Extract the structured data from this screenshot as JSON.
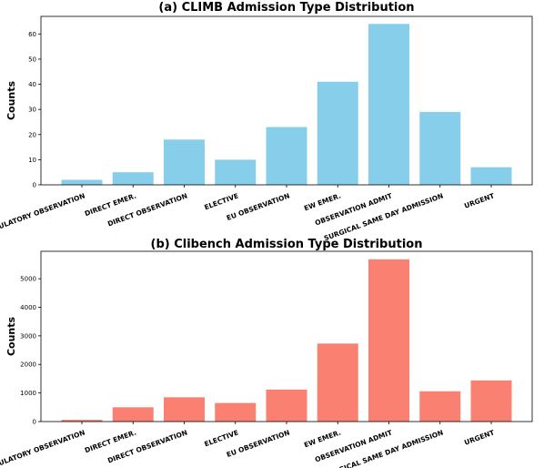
{
  "chart_data": [
    {
      "type": "bar",
      "title": "(a) CLIMB Admission Type Distribution",
      "xlabel": "",
      "ylabel": "Counts",
      "categories": [
        "AMBULATORY OBSERVATION",
        "DIRECT EMER.",
        "DIRECT OBSERVATION",
        "ELECTIVE",
        "EU OBSERVATION",
        "EW EMER.",
        "OBSERVATION ADMIT",
        "SURGICAL SAME DAY ADMISSION",
        "URGENT"
      ],
      "values": [
        2,
        5,
        18,
        10,
        23,
        41,
        64,
        29,
        7
      ],
      "ylim": [
        0,
        67
      ],
      "yticks": [
        0,
        10,
        20,
        30,
        40,
        50,
        60
      ],
      "color": "#87CEEB",
      "grid": false
    },
    {
      "type": "bar",
      "title": "(b) Clibench Admission Type Distribution",
      "xlabel": "",
      "ylabel": "Counts",
      "categories": [
        "AMBULATORY OBSERVATION",
        "DIRECT EMER.",
        "DIRECT OBSERVATION",
        "ELECTIVE",
        "EU OBSERVATION",
        "EW EMER.",
        "OBSERVATION ADMIT",
        "SURGICAL SAME DAY ADMISSION",
        "URGENT"
      ],
      "values": [
        60,
        500,
        850,
        650,
        1120,
        2730,
        5680,
        1060,
        1440
      ],
      "ylim": [
        0,
        5960
      ],
      "yticks": [
        0,
        1000,
        2000,
        3000,
        4000,
        5000
      ],
      "color": "#FA8072",
      "grid": false
    }
  ]
}
